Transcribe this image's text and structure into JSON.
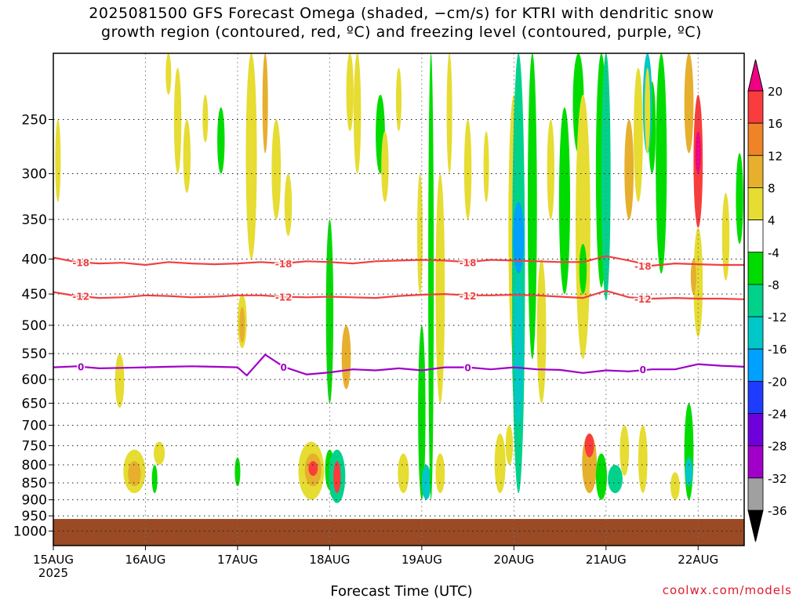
{
  "header": {
    "title_line1": "2025081500 GFS Forecast Omega (shaded, −cm/s) for KTRI with dendritic snow",
    "title_line2": "growth region (contoured, red, ºC) and freezing level (contoured, purple, ºC)"
  },
  "footer": {
    "xlabel": "Forecast Time (UTC)",
    "credit": "coolwx.com/models"
  },
  "chart_data": {
    "type": "heatmap",
    "title": "2025081500 GFS Forecast Omega (shaded, −cm/s) for KTRI with dendritic snow growth region (contoured, red, ºC) and freezing level (contoured, purple, ºC)",
    "xlabel": "Forecast Time (UTC)",
    "ylabel": "",
    "x_range": [
      "2025-08-15 00Z",
      "2025-08-22 12Z"
    ],
    "x_ticks": [
      {
        "label": "15AUG",
        "sub": "2025"
      },
      {
        "label": "16AUG",
        "sub": ""
      },
      {
        "label": "17AUG",
        "sub": ""
      },
      {
        "label": "18AUG",
        "sub": ""
      },
      {
        "label": "19AUG",
        "sub": ""
      },
      {
        "label": "20AUG",
        "sub": ""
      },
      {
        "label": "21AUG",
        "sub": ""
      },
      {
        "label": "22AUG",
        "sub": ""
      }
    ],
    "y_axis": {
      "scale": "log",
      "inverted": true,
      "range_hpa": [
        1050,
        200
      ],
      "ticks": [
        250,
        300,
        350,
        400,
        450,
        500,
        550,
        600,
        650,
        700,
        750,
        800,
        850,
        900,
        950,
        1000
      ]
    },
    "grid": true,
    "ground_level_hpa": 960,
    "colorbar": {
      "levels": [
        -36,
        -32,
        -28,
        -24,
        -20,
        -16,
        -12,
        -8,
        -4,
        4,
        8,
        12,
        16,
        20
      ],
      "colors": [
        "#000000",
        "#a0a0a0",
        "#a000c8",
        "#6e00dc",
        "#1e3cff",
        "#00a0ff",
        "#00c8c8",
        "#00d28c",
        "#00dc00",
        "#ffffff",
        "#e6dc32",
        "#e6af2d",
        "#f08228",
        "#fa3c3c",
        "#f00082"
      ]
    },
    "series": [
      {
        "name": "-18",
        "color": "#f04040",
        "points": [
          [
            0,
            398
          ],
          [
            0.25,
            404
          ],
          [
            0.5,
            406
          ],
          [
            0.75,
            405
          ],
          [
            1.0,
            408
          ],
          [
            1.25,
            404
          ],
          [
            1.5,
            406
          ],
          [
            1.75,
            407
          ],
          [
            2.0,
            406
          ],
          [
            2.25,
            404
          ],
          [
            2.5,
            406
          ],
          [
            2.75,
            403
          ],
          [
            3.0,
            404
          ],
          [
            3.25,
            406
          ],
          [
            3.5,
            403
          ],
          [
            3.75,
            402
          ],
          [
            4.0,
            401
          ],
          [
            4.25,
            402
          ],
          [
            4.5,
            404
          ],
          [
            4.75,
            401
          ],
          [
            5.0,
            402
          ],
          [
            5.25,
            403
          ],
          [
            5.5,
            404
          ],
          [
            5.75,
            404
          ],
          [
            6.0,
            396
          ],
          [
            6.25,
            402
          ],
          [
            6.5,
            409
          ],
          [
            6.75,
            406
          ],
          [
            7.0,
            407
          ],
          [
            7.25,
            408
          ],
          [
            7.5,
            408
          ]
        ]
      },
      {
        "name": "-12",
        "color": "#f04040",
        "points": [
          [
            0,
            447
          ],
          [
            0.25,
            453
          ],
          [
            0.5,
            456
          ],
          [
            0.75,
            455
          ],
          [
            1.0,
            452
          ],
          [
            1.25,
            453
          ],
          [
            1.5,
            455
          ],
          [
            1.75,
            454
          ],
          [
            2.0,
            452
          ],
          [
            2.25,
            452
          ],
          [
            2.5,
            454
          ],
          [
            2.75,
            455
          ],
          [
            3.0,
            454
          ],
          [
            3.25,
            455
          ],
          [
            3.5,
            456
          ],
          [
            3.75,
            453
          ],
          [
            4.0,
            451
          ],
          [
            4.25,
            450
          ],
          [
            4.5,
            452
          ],
          [
            4.75,
            452
          ],
          [
            5.0,
            451
          ],
          [
            5.25,
            452
          ],
          [
            5.5,
            454
          ],
          [
            5.75,
            456
          ],
          [
            6.0,
            445
          ],
          [
            6.25,
            455
          ],
          [
            6.5,
            457
          ],
          [
            6.75,
            456
          ],
          [
            7.0,
            457
          ],
          [
            7.25,
            457
          ],
          [
            7.5,
            458
          ]
        ]
      },
      {
        "name": "0",
        "color": "#a000c8",
        "points": [
          [
            0,
            576
          ],
          [
            0.25,
            574
          ],
          [
            0.5,
            578
          ],
          [
            0.75,
            577
          ],
          [
            1.0,
            576
          ],
          [
            1.25,
            575
          ],
          [
            1.5,
            574
          ],
          [
            1.75,
            575
          ],
          [
            2.0,
            576
          ],
          [
            2.1,
            592
          ],
          [
            2.3,
            552
          ],
          [
            2.5,
            575
          ],
          [
            2.75,
            590
          ],
          [
            3.0,
            586
          ],
          [
            3.25,
            580
          ],
          [
            3.5,
            582
          ],
          [
            3.75,
            578
          ],
          [
            4.0,
            582
          ],
          [
            4.25,
            576
          ],
          [
            4.5,
            576
          ],
          [
            4.75,
            580
          ],
          [
            5.0,
            576
          ],
          [
            5.25,
            580
          ],
          [
            5.5,
            581
          ],
          [
            5.75,
            587
          ],
          [
            6.0,
            582
          ],
          [
            6.25,
            584
          ],
          [
            6.5,
            580
          ],
          [
            6.75,
            580
          ],
          [
            7.0,
            570
          ],
          [
            7.25,
            573
          ],
          [
            7.5,
            575
          ]
        ]
      }
    ]
  }
}
